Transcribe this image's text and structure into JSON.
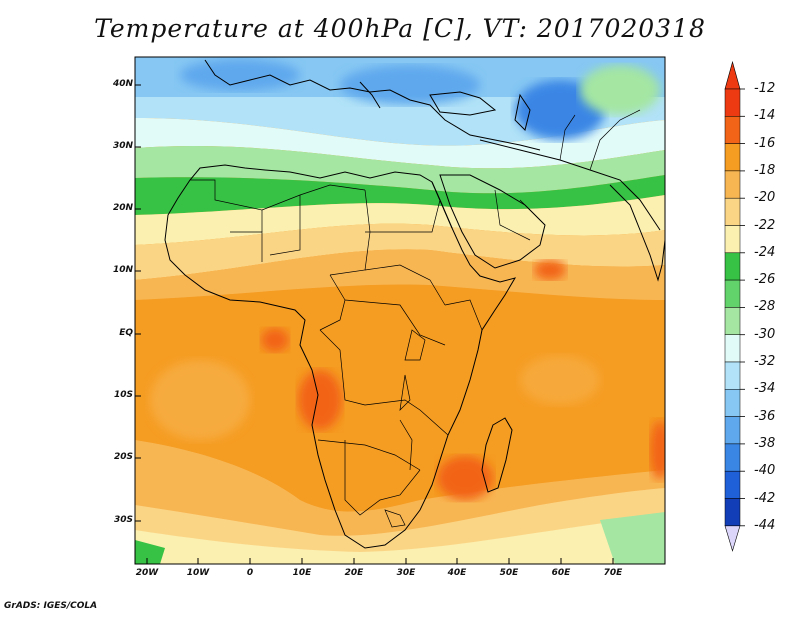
{
  "title": "Temperature at 400hPa [C], VT: 2017020318",
  "lat_labels": [
    "40N",
    "30N",
    "20N",
    "10N",
    "EQ",
    "10S",
    "20S",
    "30S"
  ],
  "lon_labels": [
    "20W",
    "10W",
    "0",
    "10E",
    "20E",
    "30E",
    "40E",
    "50E",
    "60E",
    "70E"
  ],
  "colorbar": {
    "labels": [
      "-12",
      "-14",
      "-16",
      "-18",
      "-20",
      "-22",
      "-24",
      "-26",
      "-28",
      "-30",
      "-32",
      "-34",
      "-36",
      "-38",
      "-40",
      "-42",
      "-44"
    ],
    "colors": [
      "#ee3a12",
      "#f26418",
      "#f59c22",
      "#f8b653",
      "#fbd586",
      "#fbf0b0",
      "#37c145",
      "#62d36a",
      "#a4e6a2",
      "#e1fbf9",
      "#b1e2f7",
      "#86c7f3",
      "#5fa8ed",
      "#3a86e5",
      "#1f5fd8",
      "#123fb8",
      "#0a1e82"
    ],
    "top_arrow_color": "#ee3a12",
    "bottom_arrow_color": "#dcd6fb"
  },
  "credit": "GrADS: IGES/COLA"
}
